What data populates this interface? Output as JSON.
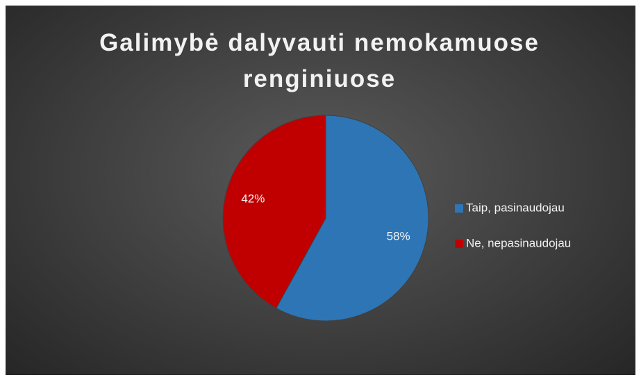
{
  "chart_data": {
    "type": "pie",
    "title": "Galimybė dalyvauti nemokamuose renginiuose",
    "categories": [
      "Taip, pasinaudojau",
      "Ne, nepasinaudojau"
    ],
    "values": [
      58,
      42
    ],
    "value_labels": [
      "58%",
      "42%"
    ],
    "colors": [
      "#2e75b6",
      "#c00000"
    ],
    "legend": "right"
  }
}
